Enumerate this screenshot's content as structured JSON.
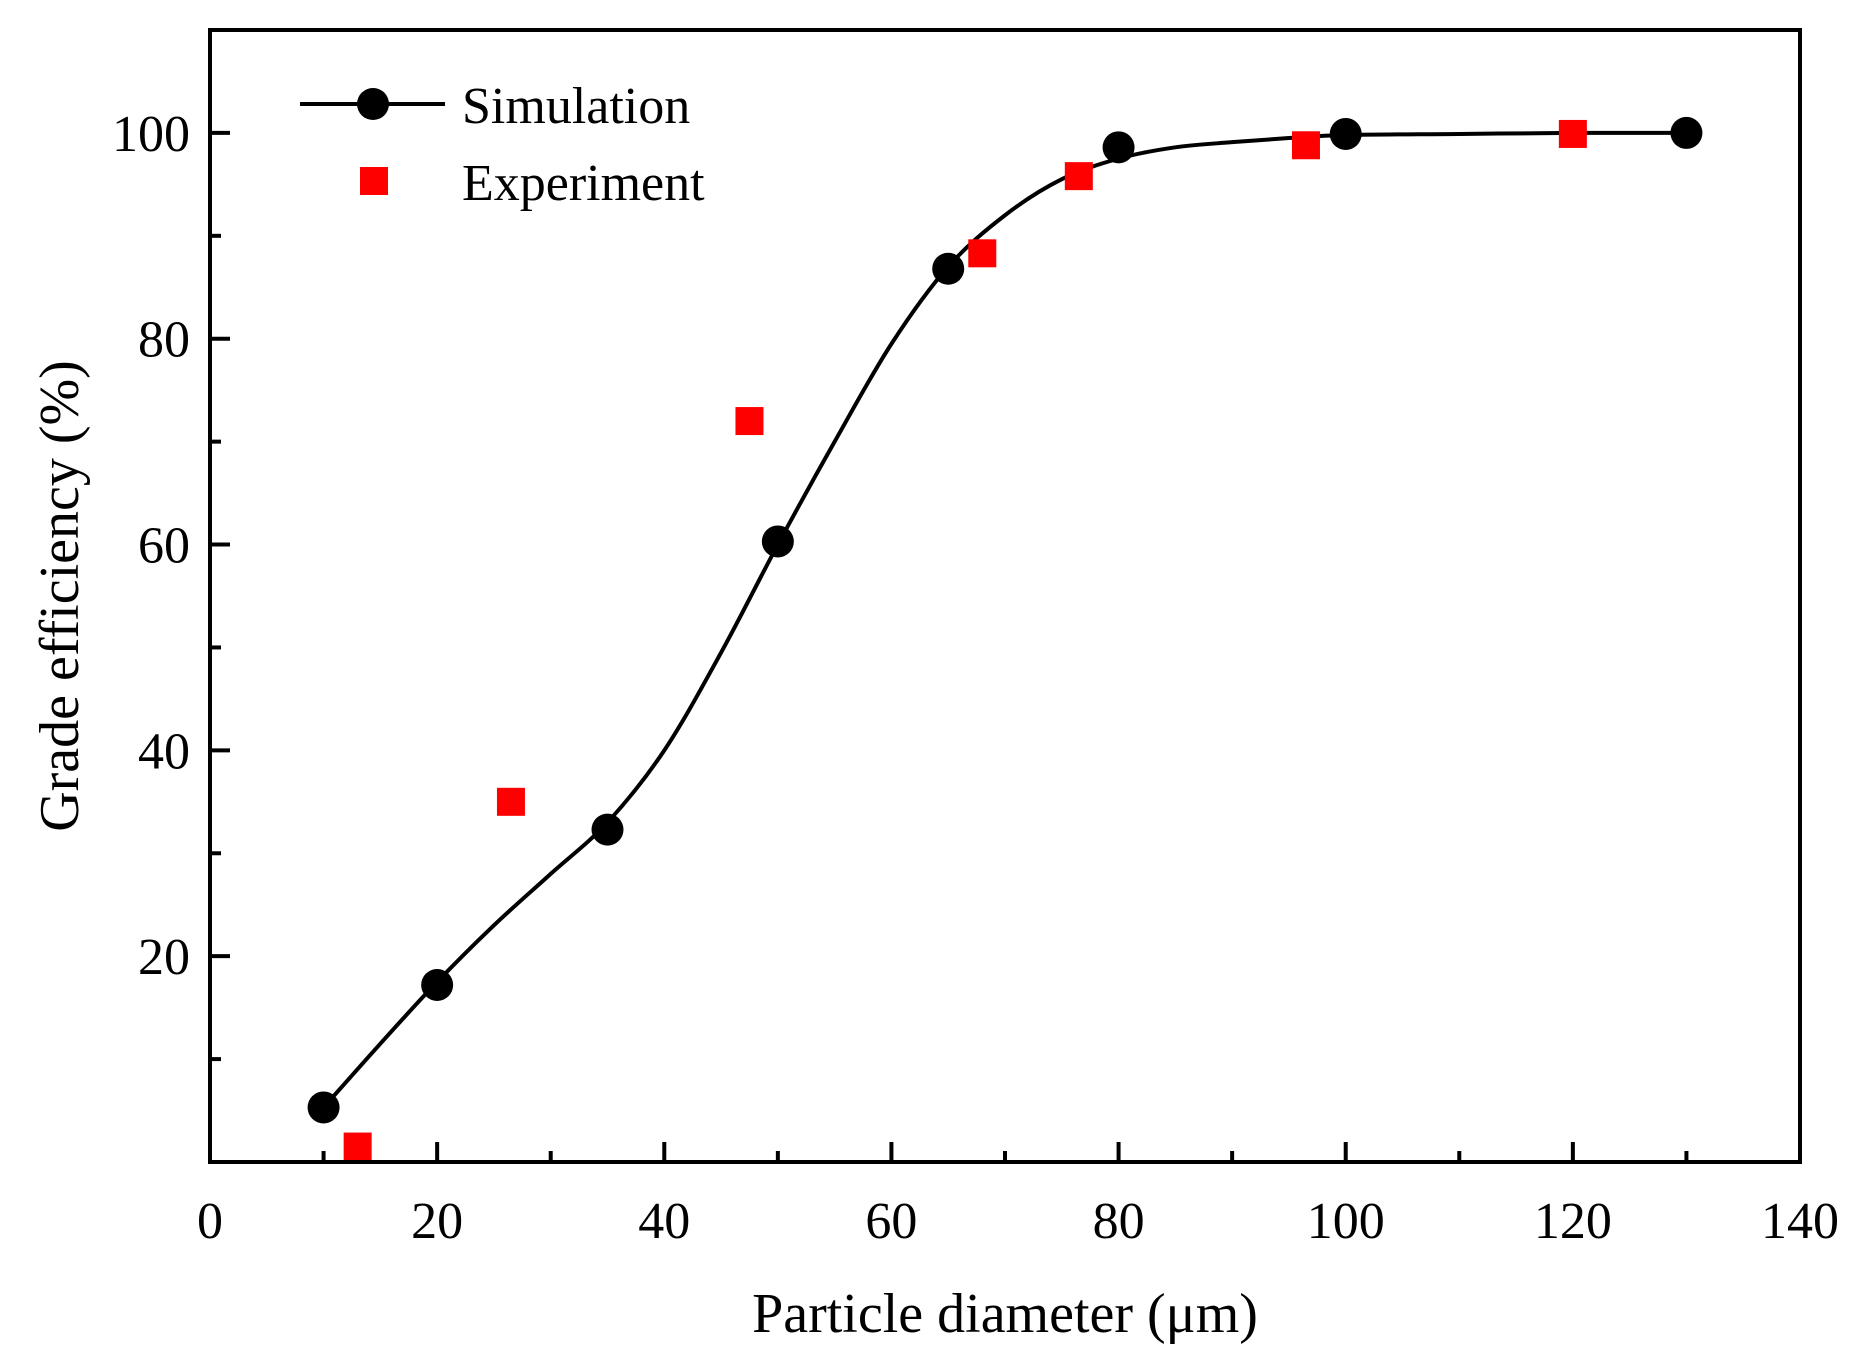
{
  "chart_data": {
    "type": "scatter",
    "title": "",
    "xlabel": "Particle diameter (μm)",
    "ylabel": "Grade efficiency (%)",
    "xlim": [
      0,
      140
    ],
    "ylim": [
      0,
      110
    ],
    "x_ticks": [
      0,
      20,
      40,
      60,
      80,
      100,
      120,
      140
    ],
    "x_tick_labels": [
      "0",
      "20",
      "40",
      "60",
      "80",
      "100",
      "120",
      "140"
    ],
    "y_ticks": [
      20,
      40,
      60,
      80,
      100
    ],
    "y_tick_labels": [
      "20",
      "40",
      "60",
      "80",
      "100"
    ],
    "x_minor_ticks": [
      10,
      30,
      50,
      70,
      90,
      110,
      130
    ],
    "y_minor_ticks": [
      10,
      30,
      50,
      70,
      90
    ],
    "grid": false,
    "legend_position": "top-left",
    "series": [
      {
        "name": "Simulation",
        "marker": "circle",
        "line": "smooth",
        "color": "#000000",
        "x": [
          10,
          20,
          35,
          50,
          65,
          80,
          100,
          130
        ],
        "y": [
          5.3,
          17.2,
          32.3,
          60.3,
          86.8,
          98.6,
          99.9,
          100.0
        ]
      },
      {
        "name": "Experiment",
        "marker": "square",
        "line": "none",
        "color": "#ff0000",
        "x": [
          13,
          26.5,
          47.5,
          68,
          76.5,
          96.5,
          120
        ],
        "y": [
          1.5,
          35.0,
          72.0,
          88.3,
          95.8,
          98.8,
          99.9
        ]
      }
    ],
    "fit_curve": {
      "x": [
        10,
        15,
        20,
        25,
        30,
        35,
        40,
        45,
        50,
        55,
        60,
        65,
        70,
        75,
        80,
        85,
        90,
        95,
        100,
        110,
        120,
        130
      ],
      "y": [
        5.3,
        11.5,
        17.5,
        23.0,
        28.0,
        33.0,
        40.0,
        49.5,
        60.0,
        70.0,
        79.5,
        87.0,
        92.0,
        95.5,
        97.5,
        98.6,
        99.1,
        99.5,
        99.8,
        99.9,
        100.0,
        100.0
      ]
    }
  }
}
